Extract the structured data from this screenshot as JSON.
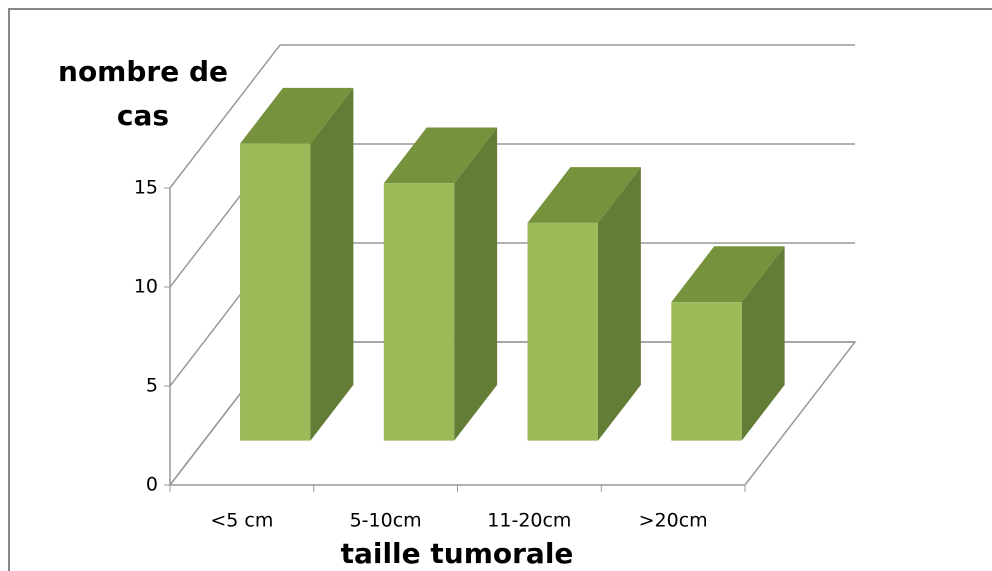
{
  "chart_data": {
    "type": "bar3d",
    "y_axis_label": "nombre de cas",
    "x_axis_label": "taille tumorale",
    "categories": [
      "<5 cm",
      "5-10cm",
      "11-20cm",
      ">20cm"
    ],
    "values": [
      15,
      13,
      11,
      7
    ],
    "color": "#9bbb59",
    "ylim": [
      0,
      15
    ],
    "yticks": [
      0,
      5,
      10,
      15
    ],
    "grid": true
  }
}
